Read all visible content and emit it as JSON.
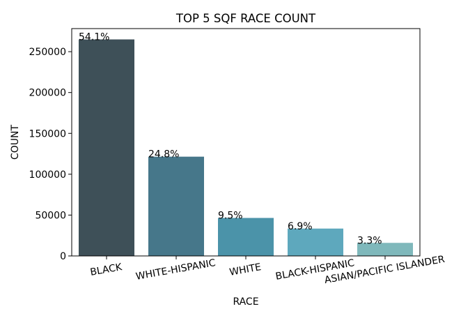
{
  "chart_data": {
    "type": "bar",
    "title": "TOP 5 SQF RACE COUNT",
    "xlabel": "RACE",
    "ylabel": "COUNT",
    "categories": [
      "BLACK",
      "WHITE-HISPANIC",
      "WHITE",
      "BLACK-HISPANIC",
      "ASIAN/PACIFIC ISLANDER"
    ],
    "values": [
      265000,
      121500,
      46500,
      33500,
      16000
    ],
    "data_labels": [
      "54.1%",
      "24.8%",
      "9.5%",
      "6.9%",
      "3.3%"
    ],
    "colors": [
      "#3e5058",
      "#46778a",
      "#4b93a9",
      "#5ea8bd",
      "#7fb8bb"
    ],
    "yticks": [
      "0",
      "50000",
      "100000",
      "150000",
      "200000",
      "250000"
    ],
    "ytick_values": [
      0,
      50000,
      100000,
      150000,
      200000,
      250000
    ],
    "ylim": [
      0,
      278250
    ],
    "grid": false,
    "legend": "none"
  }
}
